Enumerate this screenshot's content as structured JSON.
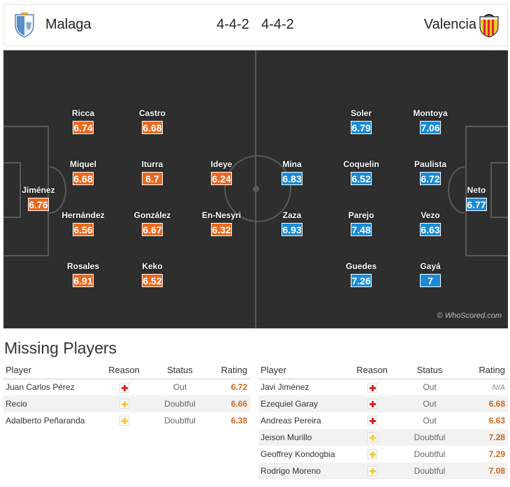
{
  "header": {
    "home_team": "Malaga",
    "away_team": "Valencia",
    "home_formation": "4-4-2",
    "away_formation": "4-4-2",
    "home_crest_icon": "malaga-crest-icon",
    "away_crest_icon": "valencia-crest-icon"
  },
  "colors": {
    "home_rating": "#e9691f",
    "away_rating": "#1a8bd6",
    "pitch": "#2e2e2e",
    "missing_rating": "#d0651c"
  },
  "pitch": {
    "watermark": "© WhoScored.com",
    "home_players": [
      {
        "name": "Jiménez",
        "rating": "6.76"
      },
      {
        "name": "Ricca",
        "rating": "6.74"
      },
      {
        "name": "Miquel",
        "rating": "6.68"
      },
      {
        "name": "Hernández",
        "rating": "6.56"
      },
      {
        "name": "Rosales",
        "rating": "6.91"
      },
      {
        "name": "Castro",
        "rating": "6.68"
      },
      {
        "name": "Iturra",
        "rating": "6.7"
      },
      {
        "name": "González",
        "rating": "6.67"
      },
      {
        "name": "Keko",
        "rating": "6.52"
      },
      {
        "name": "Ideye",
        "rating": "6.24"
      },
      {
        "name": "En-Nesyri",
        "rating": "6.32"
      }
    ],
    "away_players": [
      {
        "name": "Neto",
        "rating": "6.77"
      },
      {
        "name": "Montoya",
        "rating": "7.06"
      },
      {
        "name": "Paulista",
        "rating": "6.72"
      },
      {
        "name": "Vezo",
        "rating": "6.63"
      },
      {
        "name": "Gayá",
        "rating": "7"
      },
      {
        "name": "Soler",
        "rating": "6.79"
      },
      {
        "name": "Coquelin",
        "rating": "6.52"
      },
      {
        "name": "Parejo",
        "rating": "7.48"
      },
      {
        "name": "Guedes",
        "rating": "7.26"
      },
      {
        "name": "Mina",
        "rating": "6.83"
      },
      {
        "name": "Zaza",
        "rating": "6.93"
      }
    ]
  },
  "missing": {
    "title": "Missing Players",
    "columns": {
      "player": "Player",
      "reason": "Reason",
      "status": "Status",
      "rating": "Rating"
    },
    "home": [
      {
        "player": "Juan Carlos Pérez",
        "reason": "injury",
        "status": "Out",
        "rating": "6.72"
      },
      {
        "player": "Recio",
        "reason": "doubtful",
        "status": "Doubtful",
        "rating": "6.66"
      },
      {
        "player": "Adalberto Peñaranda",
        "reason": "doubtful",
        "status": "Doubtful",
        "rating": "6.38"
      }
    ],
    "away": [
      {
        "player": "Javi Jiménez",
        "reason": "injury",
        "status": "Out",
        "rating": "N/A"
      },
      {
        "player": "Ezequiel Garay",
        "reason": "injury",
        "status": "Out",
        "rating": "6.68"
      },
      {
        "player": "Andreas Pereira",
        "reason": "injury",
        "status": "Out",
        "rating": "6.63"
      },
      {
        "player": "Jeison Murillo",
        "reason": "doubtful",
        "status": "Doubtful",
        "rating": "7.28"
      },
      {
        "player": "Geoffrey Kondogbia",
        "reason": "doubtful",
        "status": "Doubtful",
        "rating": "7.29"
      },
      {
        "player": "Rodrigo Moreno",
        "reason": "doubtful",
        "status": "Doubtful",
        "rating": "7.08"
      }
    ]
  }
}
